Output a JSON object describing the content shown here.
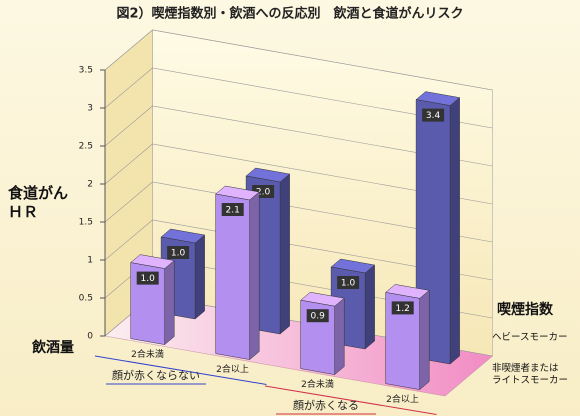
{
  "chart_data": {
    "type": "bar",
    "title": "図2）喫煙指数別・飲酒への反応別　飲酒と食道がんリスク",
    "ylabel": "食道がん\nＨＲ",
    "xlabel": "飲酒量",
    "legend_title": "喫煙指数",
    "categories": [
      "2合未満",
      "2合以上",
      "2合未満",
      "2合以上"
    ],
    "groups": [
      "顔が赤くならない",
      "顔が赤くなる"
    ],
    "series": [
      {
        "name": "非喫煙者または\nライトスモーカー",
        "color": "#b38ff0",
        "values": [
          1.0,
          2.1,
          0.9,
          1.2
        ],
        "value_labels": [
          "1.0",
          "2.1",
          "0.9",
          "1.2"
        ]
      },
      {
        "name": "ヘビースモーカー",
        "color": "#5b5bae",
        "values": [
          1.0,
          2.0,
          1.0,
          3.4
        ],
        "value_labels": [
          "1.0",
          "2.0",
          "1.0",
          "3.4"
        ]
      }
    ],
    "ylim": [
      0,
      3.5
    ],
    "yticks": [
      0,
      0.5,
      1,
      1.5,
      2,
      2.5,
      3,
      3.5
    ],
    "grid": true
  }
}
